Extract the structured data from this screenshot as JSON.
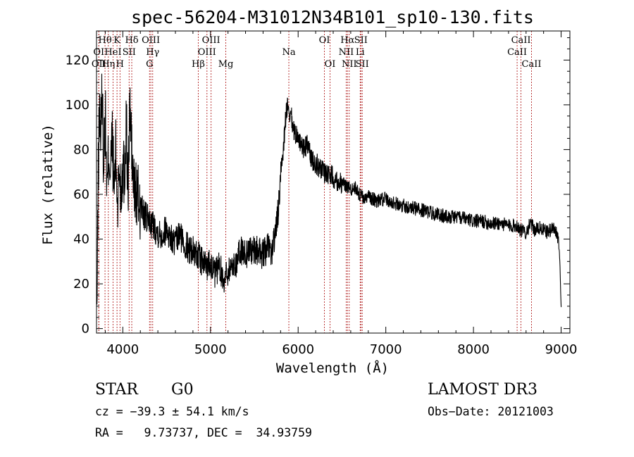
{
  "chart_data": {
    "type": "line",
    "title": "spec-56204-M31012N34B101_sp10-130.fits",
    "xlabel": "Wavelength (Å)",
    "ylabel": "Flux (relative)",
    "xlim": [
      3700,
      9100
    ],
    "ylim": [
      -2,
      133
    ],
    "xticks": [
      4000,
      5000,
      6000,
      7000,
      8000,
      9000
    ],
    "yticks": [
      0,
      20,
      40,
      60,
      80,
      100,
      120
    ],
    "grid": false,
    "legend": "none",
    "spectrum": {
      "name": "flux",
      "x": [
        3705,
        3720,
        3735,
        3750,
        3765,
        3780,
        3800,
        3820,
        3840,
        3860,
        3880,
        3900,
        3920,
        3940,
        3960,
        3980,
        4000,
        4020,
        4040,
        4060,
        4080,
        4100,
        4120,
        4150,
        4200,
        4250,
        4300,
        4350,
        4400,
        4450,
        4500,
        4550,
        4600,
        4650,
        4700,
        4750,
        4800,
        4850,
        4900,
        4950,
        5000,
        5050,
        5100,
        5150,
        5200,
        5250,
        5300,
        5350,
        5400,
        5450,
        5500,
        5550,
        5600,
        5650,
        5700,
        5750,
        5780,
        5800,
        5830,
        5860,
        5880,
        5900,
        5920,
        5950,
        6000,
        6050,
        6100,
        6150,
        6200,
        6250,
        6300,
        6350,
        6400,
        6450,
        6500,
        6550,
        6600,
        6650,
        6700,
        6750,
        6800,
        6900,
        7000,
        7100,
        7200,
        7300,
        7400,
        7500,
        7600,
        7700,
        7800,
        7900,
        8000,
        8100,
        8200,
        8300,
        8400,
        8500,
        8540,
        8600,
        8650,
        8700,
        8750,
        8800,
        8850,
        8900,
        8940,
        8970,
        8985,
        9000
      ],
      "y": [
        5,
        70,
        100,
        85,
        110,
        75,
        95,
        60,
        80,
        70,
        85,
        62,
        78,
        55,
        72,
        60,
        75,
        68,
        95,
        58,
        100,
        80,
        64,
        60,
        55,
        50,
        48,
        46,
        43,
        42,
        45,
        40,
        38,
        42,
        38,
        36,
        35,
        33,
        30,
        28,
        30,
        24,
        28,
        22,
        26,
        28,
        30,
        35,
        33,
        36,
        34,
        35,
        33,
        36,
        34,
        45,
        55,
        70,
        80,
        95,
        100,
        92,
        95,
        88,
        86,
        80,
        82,
        76,
        74,
        72,
        70,
        69,
        68,
        66,
        65,
        64,
        62,
        63,
        60,
        58,
        59,
        57,
        58,
        56,
        55,
        54,
        53,
        52,
        51,
        50,
        50,
        49,
        48,
        48,
        47,
        47,
        46,
        46,
        44,
        43,
        47,
        44,
        45,
        44,
        43,
        45,
        44,
        40,
        30,
        10
      ]
    },
    "lines": [
      {
        "label": "OII",
        "wl": 3727,
        "row": 3
      },
      {
        "label": "Hθ",
        "wl": 3797,
        "row": 1
      },
      {
        "label": "OI",
        "wl": 3726,
        "row": 2
      },
      {
        "label": "Hη",
        "wl": 3835,
        "row": 3
      },
      {
        "label": "HeI",
        "wl": 3889,
        "row": 2
      },
      {
        "label": "K",
        "wl": 3934,
        "row": 1
      },
      {
        "label": "H",
        "wl": 3968,
        "row": 3
      },
      {
        "label": "SII",
        "wl": 4072,
        "row": 2
      },
      {
        "label": "Hδ",
        "wl": 4102,
        "row": 1
      },
      {
        "label": "OIII",
        "wl": 4320,
        "row": 1
      },
      {
        "label": "Hγ",
        "wl": 4341,
        "row": 2
      },
      {
        "label": "G",
        "wl": 4305,
        "row": 3
      },
      {
        "label": "Hβ",
        "wl": 4861,
        "row": 3
      },
      {
        "label": "OIII",
        "wl": 4960,
        "row": 2
      },
      {
        "label": "OIII",
        "wl": 5007,
        "row": 1
      },
      {
        "label": "Mg",
        "wl": 5175,
        "row": 3
      },
      {
        "label": "Na",
        "wl": 5894,
        "row": 2
      },
      {
        "label": "OI",
        "wl": 6300,
        "row": 1
      },
      {
        "label": "OI",
        "wl": 6364,
        "row": 3
      },
      {
        "label": "NII",
        "wl": 6548,
        "row": 2
      },
      {
        "label": "NII",
        "wl": 6583,
        "row": 3
      },
      {
        "label": "Hα",
        "wl": 6563,
        "row": 1
      },
      {
        "label": "SII",
        "wl": 6716,
        "row": 1
      },
      {
        "label": "SII",
        "wl": 6731,
        "row": 3
      },
      {
        "label": "Li",
        "wl": 6708,
        "row": 2
      },
      {
        "label": "CaII",
        "wl": 8498,
        "row": 2
      },
      {
        "label": "CaII",
        "wl": 8542,
        "row": 1
      },
      {
        "label": "CaII",
        "wl": 8662,
        "row": 3
      }
    ]
  },
  "info": {
    "class_label": "STAR",
    "subclass": "G0",
    "survey": "LAMOST DR3",
    "cz_line": "cz = −39.3 ± 54.1 km/s",
    "obs_date_line": "Obs−Date: 20121003",
    "radec_line": "RA =   9.73737, DEC =  34.93759"
  }
}
